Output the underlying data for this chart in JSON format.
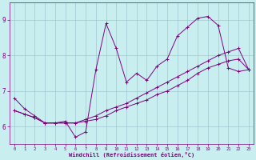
{
  "xlabel": "Windchill (Refroidissement éolien,°C)",
  "ylabel": "",
  "bg_color": "#c8eef0",
  "line_color": "#800080",
  "grid_color": "#a0c8d0",
  "xlim": [
    -0.5,
    23.5
  ],
  "ylim": [
    5.5,
    9.5
  ],
  "yticks": [
    6,
    7,
    8,
    9
  ],
  "xticks": [
    0,
    1,
    2,
    3,
    4,
    5,
    6,
    7,
    8,
    9,
    10,
    11,
    12,
    13,
    14,
    15,
    16,
    17,
    18,
    19,
    20,
    21,
    22,
    23
  ],
  "line1_x": [
    0,
    1,
    2,
    3,
    4,
    5,
    6,
    7,
    8,
    9,
    10,
    11,
    12,
    13,
    14,
    15,
    16,
    17,
    18,
    19,
    20,
    21,
    22,
    23
  ],
  "line1_y": [
    6.8,
    6.5,
    6.3,
    6.1,
    6.1,
    6.15,
    5.7,
    5.85,
    7.6,
    8.9,
    8.2,
    7.25,
    7.5,
    7.3,
    7.7,
    7.9,
    8.55,
    8.8,
    9.05,
    9.1,
    8.85,
    7.65,
    7.55,
    7.6
  ],
  "line2_x": [
    0,
    1,
    2,
    3,
    4,
    5,
    6,
    7,
    8,
    9,
    10,
    11,
    12,
    13,
    14,
    15,
    16,
    17,
    18,
    19,
    20,
    21,
    22,
    23
  ],
  "line2_y": [
    6.45,
    6.35,
    6.25,
    6.1,
    6.1,
    6.1,
    6.1,
    6.15,
    6.2,
    6.3,
    6.45,
    6.55,
    6.65,
    6.75,
    6.9,
    7.0,
    7.15,
    7.3,
    7.5,
    7.65,
    7.75,
    7.85,
    7.9,
    7.6
  ],
  "line3_x": [
    0,
    1,
    2,
    3,
    4,
    5,
    6,
    7,
    8,
    9,
    10,
    11,
    12,
    13,
    14,
    15,
    16,
    17,
    18,
    19,
    20,
    21,
    22,
    23
  ],
  "line3_y": [
    6.45,
    6.35,
    6.25,
    6.1,
    6.1,
    6.1,
    6.1,
    6.2,
    6.3,
    6.45,
    6.55,
    6.65,
    6.8,
    6.95,
    7.1,
    7.25,
    7.4,
    7.55,
    7.7,
    7.85,
    8.0,
    8.1,
    8.2,
    7.6
  ]
}
